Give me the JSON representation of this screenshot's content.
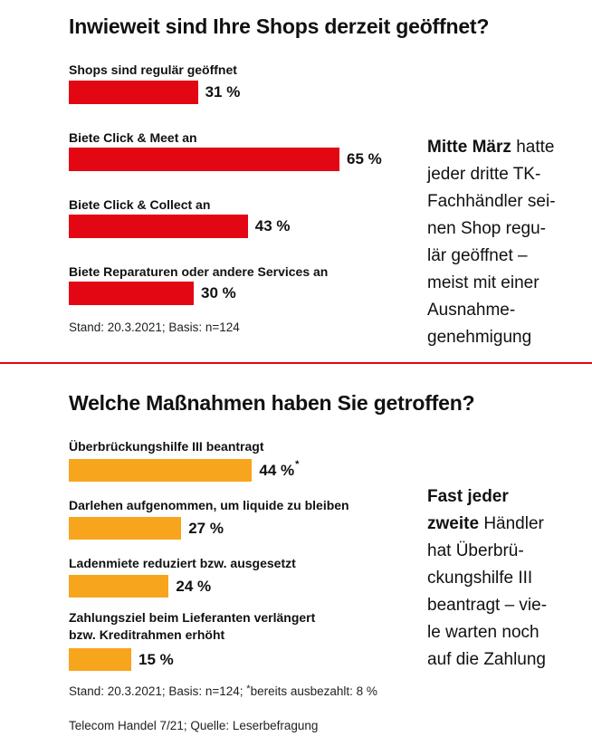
{
  "colors": {
    "section1_bar": "#e30613",
    "section2_bar": "#f7a51c",
    "divider": "#e30613"
  },
  "chart_data": [
    {
      "type": "bar",
      "orientation": "horizontal",
      "title": "Inwieweit sind Ihre Shops derzeit geöffnet?",
      "unit": "%",
      "categories": [
        "Shops sind regulär geöffnet",
        "Biete Click & Meet an",
        "Biete Click & Collect an",
        "Biete Reparaturen oder andere Services an"
      ],
      "values": [
        31,
        65,
        43,
        30
      ],
      "value_labels": [
        "31 %",
        "65 %",
        "43 %",
        "30 %"
      ],
      "source": "Stand: 20.3.2021; Basis: n=124",
      "note_bold": "Mitte März",
      "note_lines": [
        "hatte",
        "jeder dritte TK-",
        "Fachhändler sei-",
        "nen Shop regu-",
        "lär geöffnet –",
        "meist mit einer",
        "Ausnahme-",
        "genehmigung"
      ]
    },
    {
      "type": "bar",
      "orientation": "horizontal",
      "title": "Welche Maßnahmen haben Sie getroffen?",
      "unit": "%",
      "categories": [
        [
          "Überbrückungshilfe III beantragt"
        ],
        [
          "Darlehen aufgenommen, um liquide zu bleiben"
        ],
        [
          "Ladenmiete reduziert bzw. ausgesetzt"
        ],
        [
          "Zahlungsziel beim Lieferanten verlängert",
          "bzw. Kreditrahmen erhöht"
        ]
      ],
      "values": [
        44,
        27,
        24,
        15
      ],
      "value_labels": [
        "44 %",
        "27 %",
        "24 %",
        "15 %"
      ],
      "value_marks": [
        "*",
        "",
        "",
        ""
      ],
      "source": "Stand: 20.3.2021; Basis: n=124;",
      "footnote_mark": "*",
      "footnote_text": "bereits ausbezahlt: 8 %",
      "note_bold_lines": [
        "Fast jeder",
        "zweite"
      ],
      "note_lines": [
        "Händler",
        "hat Überbrü-",
        "ckungshilfe III",
        "beantragt – vie-",
        "le warten noch",
        "auf die Zahlung"
      ]
    }
  ],
  "credit": "Telecom Handel 7/21; Quelle: Leserbefragung"
}
